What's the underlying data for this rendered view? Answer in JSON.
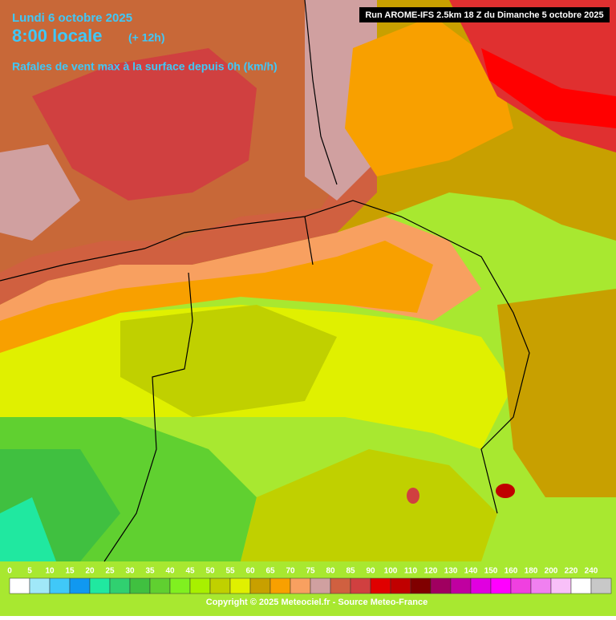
{
  "header": {
    "date": "Lundi 6 octobre 2025",
    "time": "8:00 locale",
    "offset": "(+ 12h)",
    "subtitle": "Rafales de vent max à la surface depuis 0h (km/h)",
    "run": "Run AROME-IFS 2.5km 18 Z du Dimanche 5 octobre 2025"
  },
  "legend": {
    "values": [
      0,
      5,
      10,
      15,
      20,
      25,
      30,
      35,
      40,
      45,
      50,
      55,
      60,
      65,
      70,
      75,
      80,
      85,
      90,
      100,
      110,
      120,
      130,
      140,
      150,
      160,
      180,
      200,
      220,
      240
    ],
    "colors": [
      "#ffffff",
      "#a0e8f8",
      "#40c8f8",
      "#1098f0",
      "#20e8a0",
      "#30d070",
      "#40c040",
      "#60d030",
      "#80f020",
      "#a8f000",
      "#c0d000",
      "#e0f000",
      "#c8a000",
      "#f8a000",
      "#f8a060",
      "#d0a0a0",
      "#d06040",
      "#d04040",
      "#e00000",
      "#c00000",
      "#800000",
      "#a00060",
      "#c000a0",
      "#e000e0",
      "#ff00ff",
      "#f040e0",
      "#f080f0",
      "#f8c0f8",
      "#ffffff",
      "#c8c8c8"
    ]
  },
  "footer": {
    "copyright": "Copyright © 2025 Meteociel.fr - Source Meteo-France"
  }
}
